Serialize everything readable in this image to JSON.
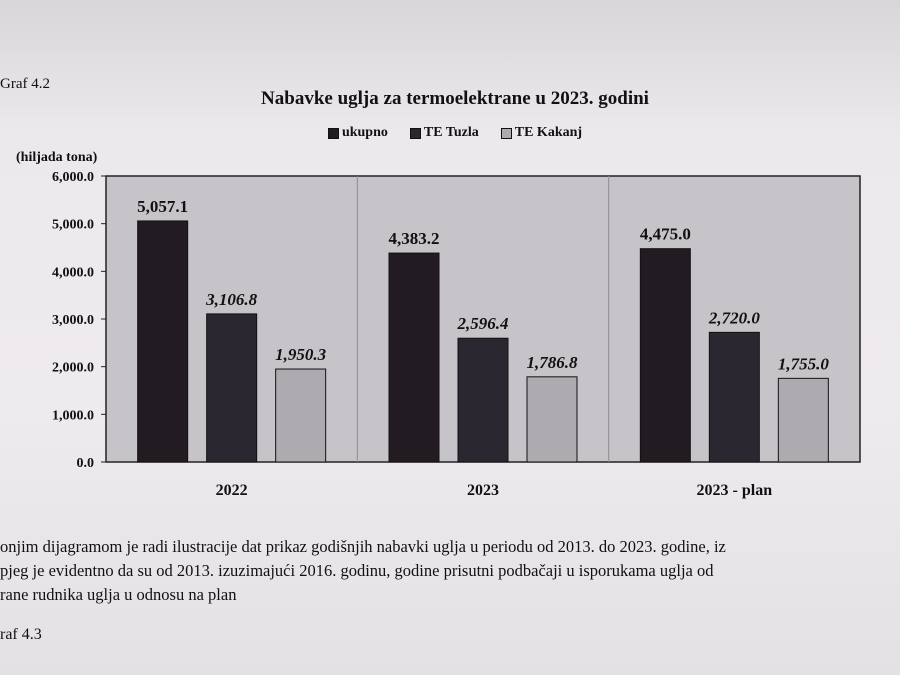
{
  "figure_label_top": "Graf 4.2",
  "figure_label_bottom": "raf 4.3",
  "paragraph_lines": [
    "onjim dijagramom je radi ilustracije dat prikaz godišnjih nabavki uglja u periodu od 2013. do 2023. godine, iz",
    "pjeg je evidentno da su od 2013. izuzimajući 2016. godinu, godine prisutni podbačaji u isporukama uglja od",
    "rane rudnika uglja u odnosu na plan"
  ],
  "colors": {
    "plot_bg": "#c6c4c9",
    "ukupno": "#221c22",
    "te_tuzla": "#2a2730",
    "te_kakanj": "#aeabb0"
  },
  "chart_data": {
    "type": "bar",
    "title": "Nabavke uglja za termoelektrane u 2023. godini",
    "ylabel": "(hiljada tona)",
    "xlabel": "",
    "ylim": [
      0,
      6000
    ],
    "yticks": [
      "0.0",
      "1,000.0",
      "2,000.0",
      "3,000.0",
      "4,000.0",
      "5,000.0",
      "6,000.0"
    ],
    "categories": [
      "2022",
      "2023",
      "2023 - plan"
    ],
    "legend_position": "top",
    "grid": false,
    "series": [
      {
        "name": "ukupno",
        "values": [
          5057.1,
          4383.2,
          4475.0
        ],
        "labels": [
          "5,057.1",
          "4,383.2",
          "4,475.0"
        ]
      },
      {
        "name": "TE Tuzla",
        "values": [
          3106.8,
          2596.4,
          2720.0
        ],
        "labels": [
          "3,106.8",
          "2,596.4",
          "2,720.0"
        ]
      },
      {
        "name": "TE Kakanj",
        "values": [
          1950.3,
          1786.8,
          1755.0
        ],
        "labels": [
          "1,950.3",
          "1,786.8",
          "1,755.0"
        ]
      }
    ]
  }
}
